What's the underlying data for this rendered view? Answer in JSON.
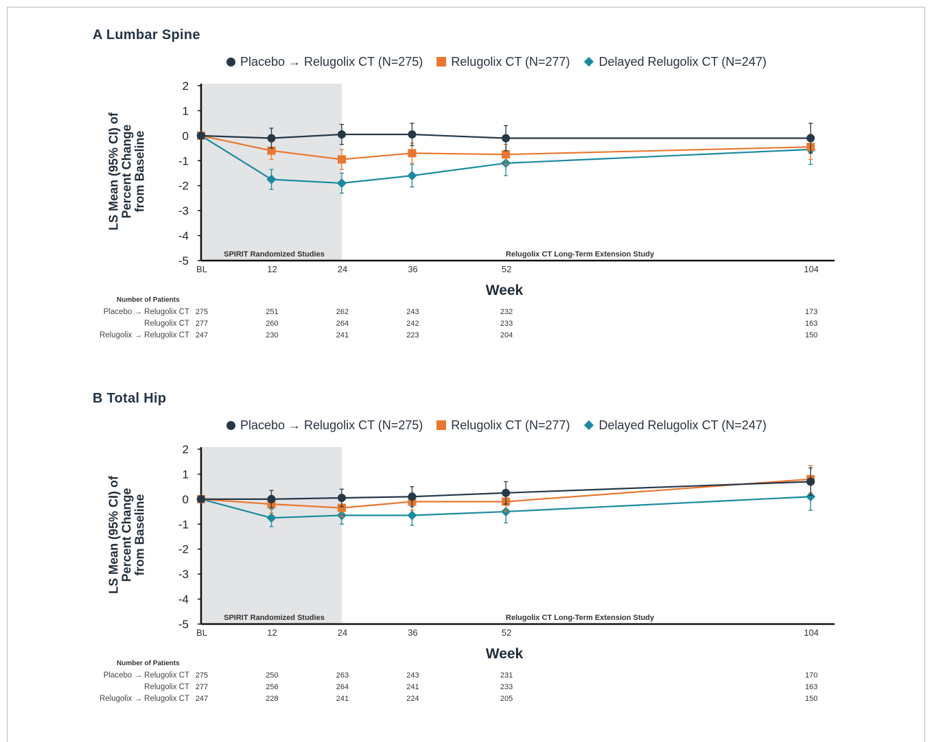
{
  "legend": {
    "placebo": "Placebo → Relugolix CT (N=275)",
    "relugolix": "Relugolix CT (N=277)",
    "delayed": "Delayed Relugolix CT (N=247)"
  },
  "y_title_line1": "LS Mean (95% CI) of",
  "y_title_line2": "Percent Change",
  "y_title_line3": "from Baseline",
  "region_left": "SPIRIT Randomized Studies",
  "region_right": "Relugolix CT Long-Term Extension Study",
  "patients_title": "Number of Patients",
  "patient_row_labels": [
    "Placebo → Relugolix CT",
    "Relugolix CT",
    "Relugolix → Relugolix CT"
  ],
  "colors": {
    "placebo": "#253848",
    "relugolix": "#e9772f",
    "delayed": "#1a8a9e",
    "shade": "#e3e4e6"
  },
  "chart_data": [
    {
      "type": "line",
      "panel_title": "A  Lumbar Spine",
      "xlabel": "Week",
      "x": [
        "BL",
        "12",
        "24",
        "36",
        "52",
        "104"
      ],
      "x_values": [
        0,
        12,
        24,
        36,
        52,
        104
      ],
      "ylim": [
        -5,
        2
      ],
      "yticks": [
        2,
        1,
        0,
        -1,
        -2,
        -3,
        -4,
        -5
      ],
      "shaded_x_range": [
        0,
        24
      ],
      "series": [
        {
          "name": "Placebo → Relugolix CT (N=275)",
          "marker": "circle",
          "values": [
            0,
            -0.1,
            0.05,
            0.05,
            -0.1,
            -0.1
          ],
          "ci": [
            0,
            0.4,
            0.4,
            0.45,
            0.5,
            0.6
          ],
          "patients": [
            275,
            251,
            262,
            243,
            232,
            173
          ]
        },
        {
          "name": "Relugolix CT (N=277)",
          "marker": "square",
          "values": [
            0,
            -0.6,
            -0.95,
            -0.7,
            -0.75,
            -0.45
          ],
          "ci": [
            0,
            0.35,
            0.4,
            0.4,
            0.4,
            0.5
          ],
          "patients": [
            277,
            260,
            264,
            242,
            233,
            163
          ]
        },
        {
          "name": "Delayed Relugolix CT (N=247)",
          "marker": "diamond",
          "values": [
            0,
            -1.75,
            -1.9,
            -1.6,
            -1.1,
            -0.55
          ],
          "ci": [
            0,
            0.4,
            0.4,
            0.45,
            0.5,
            0.6
          ],
          "patients": [
            247,
            230,
            241,
            223,
            204,
            150
          ]
        }
      ]
    },
    {
      "type": "line",
      "panel_title": "B  Total Hip",
      "xlabel": "Week",
      "x": [
        "BL",
        "12",
        "24",
        "36",
        "52",
        "104"
      ],
      "x_values": [
        0,
        12,
        24,
        36,
        52,
        104
      ],
      "ylim": [
        -5,
        2
      ],
      "yticks": [
        2,
        1,
        0,
        -1,
        -2,
        -3,
        -4,
        -5
      ],
      "shaded_x_range": [
        0,
        24
      ],
      "series": [
        {
          "name": "Placebo → Relugolix CT (N=275)",
          "marker": "circle",
          "values": [
            0,
            0.0,
            0.05,
            0.1,
            0.25,
            0.7
          ],
          "ci": [
            0,
            0.35,
            0.35,
            0.4,
            0.45,
            0.55
          ],
          "patients": [
            275,
            250,
            263,
            243,
            231,
            170
          ]
        },
        {
          "name": "Relugolix CT (N=277)",
          "marker": "square",
          "values": [
            0,
            -0.2,
            -0.35,
            -0.1,
            -0.1,
            0.8
          ],
          "ci": [
            0,
            0.35,
            0.35,
            0.35,
            0.4,
            0.55
          ],
          "patients": [
            277,
            256,
            264,
            241,
            233,
            163
          ]
        },
        {
          "name": "Delayed Relugolix CT (N=247)",
          "marker": "diamond",
          "values": [
            0,
            -0.75,
            -0.65,
            -0.65,
            -0.5,
            0.1
          ],
          "ci": [
            0,
            0.35,
            0.35,
            0.4,
            0.45,
            0.55
          ],
          "patients": [
            247,
            228,
            241,
            224,
            205,
            150
          ]
        }
      ]
    }
  ]
}
